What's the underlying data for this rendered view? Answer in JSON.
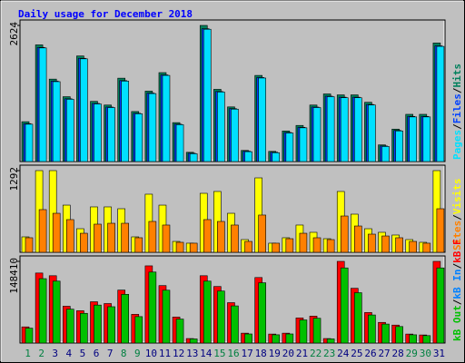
{
  "title": "Daily usage for December 2018",
  "legend_separator": "/",
  "chart_data": [
    {
      "type": "bar",
      "ylim": [
        0,
        2624
      ],
      "yticks": [
        2624
      ],
      "series": [
        {
          "name": "Hits",
          "color": "#00805c",
          "values": [
            768,
            2249,
            1589,
            1250,
            2035,
            1160,
            1089,
            1607,
            964,
            1357,
            1714,
            750,
            178,
            2624,
            1392,
            1053,
            214,
            1660,
            196,
            589,
            696,
            1089,
            1303,
            1285,
            1285,
            1142,
            321,
            625,
            910,
            910,
            2285
          ]
        },
        {
          "name": "Files",
          "color": "#0040ff",
          "values": [
            730,
            2200,
            1550,
            1210,
            1990,
            1120,
            1050,
            1560,
            930,
            1320,
            1670,
            720,
            160,
            2560,
            1350,
            1020,
            200,
            1620,
            180,
            560,
            660,
            1050,
            1260,
            1240,
            1240,
            1100,
            300,
            600,
            870,
            870,
            2230
          ]
        },
        {
          "name": "Pages",
          "color": "#00e0ff",
          "values": [
            720,
            2190,
            1540,
            1200,
            1980,
            1110,
            1040,
            1550,
            920,
            1310,
            1660,
            710,
            150,
            2550,
            1340,
            1010,
            190,
            1610,
            170,
            550,
            650,
            1040,
            1250,
            1230,
            1230,
            1090,
            290,
            590,
            860,
            860,
            2220
          ]
        }
      ]
    },
    {
      "type": "bar",
      "ylim": [
        0,
        1292
      ],
      "yticks": [
        1292
      ],
      "series": [
        {
          "name": "Visits",
          "color": "#ffff00",
          "values": [
            244,
            1292,
            1292,
            746,
            373,
            718,
            718,
            689,
            244,
            919,
            746,
            172,
            144,
            933,
            962,
            617,
            201,
            1177,
            144,
            230,
            431,
            316,
            215,
            962,
            603,
            373,
            316,
            273,
            201,
            158,
            1292
          ]
        },
        {
          "name": "Sites",
          "color": "#ff8000",
          "values": [
            230,
            675,
            617,
            517,
            301,
            445,
            459,
            459,
            230,
            488,
            431,
            158,
            144,
            517,
            488,
            431,
            172,
            589,
            144,
            215,
            301,
            230,
            201,
            574,
            416,
            287,
            258,
            230,
            172,
            144,
            689
          ]
        }
      ]
    },
    {
      "type": "bar",
      "ylim": [
        0,
        148410
      ],
      "yticks": [
        148410
      ],
      "categories": [
        "1",
        "2",
        "3",
        "4",
        "5",
        "6",
        "7",
        "8",
        "9",
        "10",
        "11",
        "12",
        "13",
        "14",
        "15",
        "16",
        "17",
        "18",
        "19",
        "20",
        "21",
        "22",
        "23",
        "24",
        "25",
        "26",
        "27",
        "28",
        "29",
        "30",
        "31"
      ],
      "category_colors": [
        "#008040",
        "#008040",
        "#000080",
        "#000080",
        "#000080",
        "#000080",
        "#000080",
        "#008040",
        "#008040",
        "#000080",
        "#000080",
        "#000080",
        "#000080",
        "#000080",
        "#008040",
        "#008040",
        "#000080",
        "#000080",
        "#000080",
        "#000080",
        "#000080",
        "#008040",
        "#008040",
        "#000080",
        "#000080",
        "#000080",
        "#000080",
        "#000080",
        "#008040",
        "#008040",
        "#000080"
      ],
      "series": [
        {
          "name": "kB F",
          "color": "#ff0000",
          "values": [
            29356,
            127211,
            122318,
            66867,
            58713,
            75022,
            71760,
            96224,
            52189,
            140256,
            104379,
            47297,
            8155,
            122318,
            102748,
            73391,
            17940,
            119056,
            16309,
            17940,
            45665,
            48927,
            8155,
            148410,
            99486,
            55451,
            37511,
            32618,
            16309,
            14678,
            148410
          ]
        },
        {
          "name": "kB In",
          "color": "#0080ff",
          "values": [
            0,
            0,
            0,
            0,
            0,
            0,
            0,
            0,
            0,
            0,
            0,
            0,
            0,
            0,
            0,
            0,
            0,
            0,
            0,
            0,
            0,
            0,
            0,
            0,
            0,
            0,
            0,
            0,
            0,
            0,
            0
          ]
        },
        {
          "name": "kB Out",
          "color": "#00c000",
          "values": [
            27000,
            117000,
            112500,
            61500,
            54000,
            69000,
            66000,
            88500,
            48000,
            129000,
            96000,
            43500,
            7500,
            112500,
            94500,
            67500,
            16500,
            109500,
            15000,
            16500,
            42000,
            45000,
            7500,
            136500,
            91500,
            51000,
            34500,
            30000,
            15000,
            13500,
            136500
          ]
        }
      ]
    }
  ]
}
